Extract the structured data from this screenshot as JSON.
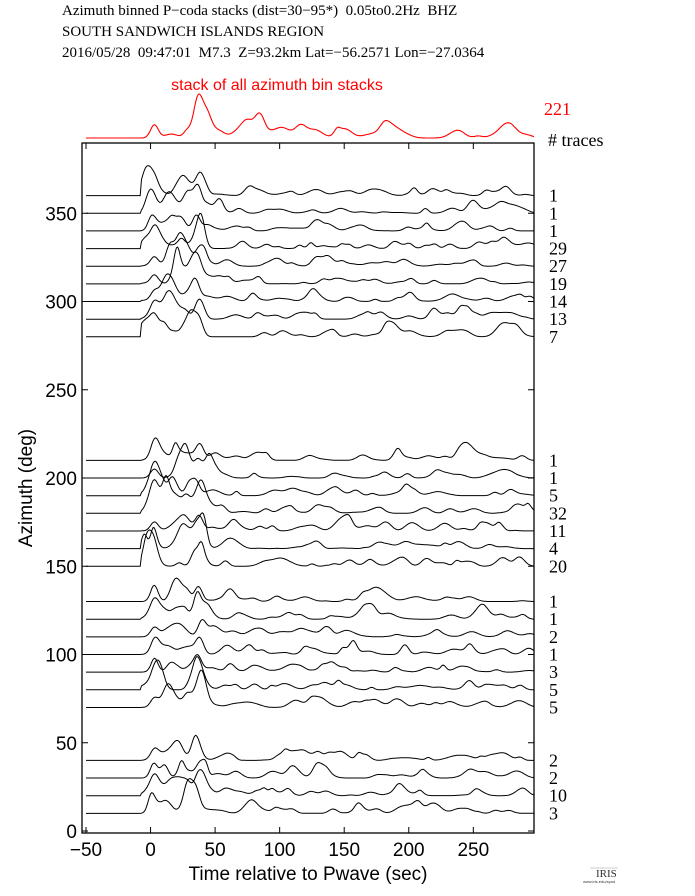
{
  "header": {
    "line1": "Azimuth binned P−coda stacks (dist=30−95*)  0.05to0.2Hz  BHZ",
    "line2": "SOUTH SANDWICH ISLANDS REGION",
    "line3": "2016/05/28  09:47:01  M7.3  Z=93.2km Lat=−56.2571 Lon=−27.0364"
  },
  "chart_data": {
    "type": "line",
    "title": "Azimuth binned P-coda stacks",
    "xlabel": "Time relative to Pwave (sec)",
    "ylabel": "Azimuth (deg)",
    "xlim": [
      -50,
      297
    ],
    "ylim": [
      0,
      390
    ],
    "xticks": [
      "−50",
      "0",
      "50",
      "100",
      "150",
      "200",
      "250"
    ],
    "xtick_values": [
      -50,
      0,
      50,
      100,
      150,
      200,
      250
    ],
    "yticks": [
      "0",
      "50",
      "100",
      "150",
      "200",
      "250",
      "300",
      "350"
    ],
    "ytick_values": [
      0,
      50,
      100,
      150,
      200,
      250,
      300,
      350
    ],
    "stack": {
      "label": "stack of all azimuth bin stacks",
      "count": "221",
      "color": "#ff0000"
    },
    "count_header": "# traces",
    "traces": [
      {
        "azimuth": 360,
        "count": "1"
      },
      {
        "azimuth": 350,
        "count": "1"
      },
      {
        "azimuth": 340,
        "count": "1"
      },
      {
        "azimuth": 330,
        "count": "29"
      },
      {
        "azimuth": 320,
        "count": "27"
      },
      {
        "azimuth": 310,
        "count": "19"
      },
      {
        "azimuth": 300,
        "count": "14"
      },
      {
        "azimuth": 290,
        "count": "13"
      },
      {
        "azimuth": 280,
        "count": "7"
      },
      {
        "azimuth": 210,
        "count": "1"
      },
      {
        "azimuth": 200,
        "count": "1"
      },
      {
        "azimuth": 190,
        "count": "5"
      },
      {
        "azimuth": 180,
        "count": "32"
      },
      {
        "azimuth": 170,
        "count": "11"
      },
      {
        "azimuth": 160,
        "count": "4"
      },
      {
        "azimuth": 150,
        "count": "20"
      },
      {
        "azimuth": 130,
        "count": "1"
      },
      {
        "azimuth": 120,
        "count": "1"
      },
      {
        "azimuth": 110,
        "count": "2"
      },
      {
        "azimuth": 100,
        "count": "1"
      },
      {
        "azimuth": 90,
        "count": "3"
      },
      {
        "azimuth": 80,
        "count": "5"
      },
      {
        "azimuth": 70,
        "count": "5"
      },
      {
        "azimuth": 40,
        "count": "2"
      },
      {
        "azimuth": 30,
        "count": "2"
      },
      {
        "azimuth": 20,
        "count": "10"
      },
      {
        "azimuth": 10,
        "count": "3"
      }
    ]
  },
  "logo": {
    "text": "IRIS",
    "url_text": "www.iris.edu/spud"
  }
}
